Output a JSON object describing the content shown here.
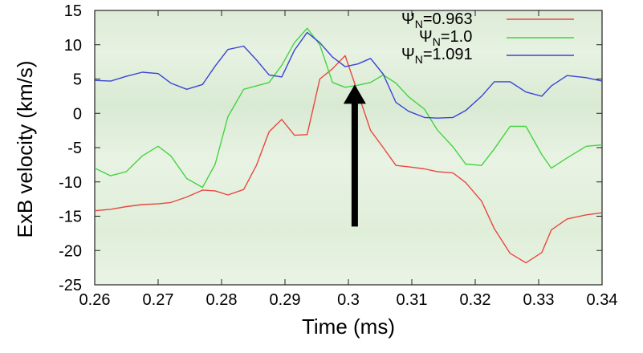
{
  "chart_data": {
    "type": "line",
    "xlabel": "Time (ms)",
    "ylabel": "ExB velocity (km/s)",
    "xlim": [
      0.26,
      0.34
    ],
    "ylim": [
      -25,
      15
    ],
    "xticks": [
      "0.26",
      "0.27",
      "0.28",
      "0.29",
      "0.3",
      "0.31",
      "0.32",
      "0.33",
      "0.34"
    ],
    "xtick_values": [
      0.26,
      0.27,
      0.28,
      0.29,
      0.3,
      0.31,
      0.32,
      0.33,
      0.34
    ],
    "yticks": [
      "15",
      "10",
      "5",
      "0",
      "-5",
      "-10",
      "-15",
      "-20",
      "-25"
    ],
    "ytick_values": [
      15,
      10,
      5,
      0,
      -5,
      -10,
      -15,
      -20,
      -25
    ],
    "grid": false,
    "legend_position": "top-right",
    "annotation": "up-arrow-at-0.301",
    "annotation_x": 0.301,
    "annotation_y_from": -16.5,
    "annotation_y_to": 4.2,
    "series": [
      {
        "name": "Ψ_N=0.963",
        "legend_main": "Ψ",
        "legend_sub": "N",
        "legend_value": "=0.963",
        "color": "#e8483f",
        "x": [
          0.26,
          0.2625,
          0.265,
          0.2675,
          0.27,
          0.272,
          0.2745,
          0.277,
          0.279,
          0.281,
          0.2835,
          0.2855,
          0.2875,
          0.2895,
          0.2915,
          0.2935,
          0.2955,
          0.2975,
          0.2995,
          0.3015,
          0.3035,
          0.3055,
          0.3075,
          0.3095,
          0.312,
          0.314,
          0.3165,
          0.3185,
          0.321,
          0.323,
          0.3255,
          0.328,
          0.3305,
          0.332,
          0.3345,
          0.3375,
          0.34
        ],
        "y": [
          -14.2,
          -14.0,
          -13.6,
          -13.3,
          -13.2,
          -13.0,
          -12.2,
          -11.2,
          -11.3,
          -11.9,
          -11.1,
          -7.6,
          -2.7,
          -0.9,
          -3.2,
          -3.1,
          5.0,
          6.5,
          8.4,
          3.0,
          -2.5,
          -5.0,
          -7.6,
          -7.8,
          -8.1,
          -8.5,
          -8.7,
          -10.1,
          -12.8,
          -16.8,
          -20.4,
          -21.8,
          -20.3,
          -17.0,
          -15.4,
          -14.8,
          -14.5
        ]
      },
      {
        "name": "Ψ_N=1.0",
        "legend_main": "Ψ",
        "legend_sub": "N",
        "legend_value": "=1.0",
        "color": "#43d43f",
        "x": [
          0.26,
          0.2625,
          0.265,
          0.2675,
          0.27,
          0.272,
          0.2745,
          0.277,
          0.279,
          0.281,
          0.2835,
          0.2855,
          0.2875,
          0.2895,
          0.2915,
          0.2935,
          0.2955,
          0.2975,
          0.2995,
          0.3015,
          0.3035,
          0.3055,
          0.3075,
          0.3095,
          0.312,
          0.314,
          0.3165,
          0.3185,
          0.321,
          0.323,
          0.3255,
          0.328,
          0.3305,
          0.332,
          0.3345,
          0.3375,
          0.34
        ],
        "y": [
          -8.0,
          -9.1,
          -8.5,
          -6.2,
          -4.8,
          -6.2,
          -9.5,
          -10.8,
          -7.4,
          -0.5,
          3.5,
          4.0,
          4.5,
          7.0,
          10.3,
          12.4,
          10.0,
          4.5,
          3.8,
          4.1,
          4.5,
          5.6,
          4.4,
          2.4,
          0.6,
          -2.4,
          -4.9,
          -7.4,
          -7.6,
          -5.2,
          -1.9,
          -1.9,
          -6.0,
          -8.0,
          -6.5,
          -4.8,
          -4.6
        ]
      },
      {
        "name": "Ψ_N=1.091",
        "legend_main": "Ψ",
        "legend_sub": "N",
        "legend_value": "=1.091",
        "color": "#3a44d6",
        "x": [
          0.26,
          0.2625,
          0.265,
          0.2675,
          0.27,
          0.272,
          0.2745,
          0.277,
          0.279,
          0.281,
          0.2835,
          0.2855,
          0.2875,
          0.2895,
          0.2915,
          0.2935,
          0.2955,
          0.2975,
          0.2995,
          0.3015,
          0.3035,
          0.3055,
          0.3075,
          0.3095,
          0.312,
          0.314,
          0.3165,
          0.3185,
          0.321,
          0.323,
          0.3255,
          0.328,
          0.3305,
          0.332,
          0.3345,
          0.3375,
          0.34
        ],
        "y": [
          4.8,
          4.7,
          5.4,
          6.0,
          5.8,
          4.4,
          3.5,
          4.2,
          6.9,
          9.3,
          9.8,
          7.8,
          5.6,
          5.3,
          9.2,
          11.8,
          10.3,
          8.2,
          6.8,
          7.2,
          8.0,
          5.7,
          1.6,
          0.3,
          -0.6,
          -0.7,
          -0.6,
          0.4,
          2.5,
          4.6,
          4.6,
          3.1,
          2.5,
          4.0,
          5.5,
          5.2,
          4.7
        ]
      }
    ]
  }
}
